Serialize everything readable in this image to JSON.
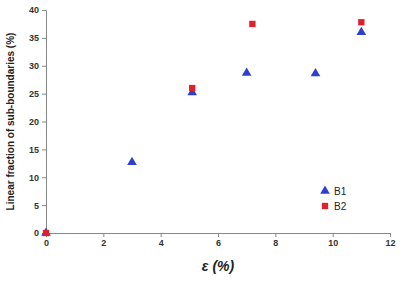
{
  "chart_data": {
    "type": "scatter",
    "x_label": "ε (%)",
    "y_label": "Linear fraction of sub-boundaries (%)",
    "series": [
      {
        "name": "B1",
        "color": "#2e3fd0",
        "marker": "triangle",
        "x": [
          0,
          3,
          5.1,
          7,
          9.4,
          11
        ],
        "values": [
          0,
          12.7,
          25.2,
          28.7,
          28.6,
          36
        ]
      },
      {
        "name": "B2",
        "color": "#e0202a",
        "marker": "square",
        "x": [
          0,
          5.1,
          7.2,
          11
        ],
        "values": [
          0,
          26,
          37.5,
          37.8
        ]
      }
    ],
    "xlim": [
      0,
      12
    ],
    "xticks": [
      0,
      2,
      4,
      6,
      8,
      10,
      12
    ],
    "ylim": [
      0,
      40
    ],
    "yticks": [
      0,
      5,
      10,
      15,
      20,
      25,
      30,
      35,
      40
    ],
    "grid": false,
    "legend": "bottom-right"
  }
}
